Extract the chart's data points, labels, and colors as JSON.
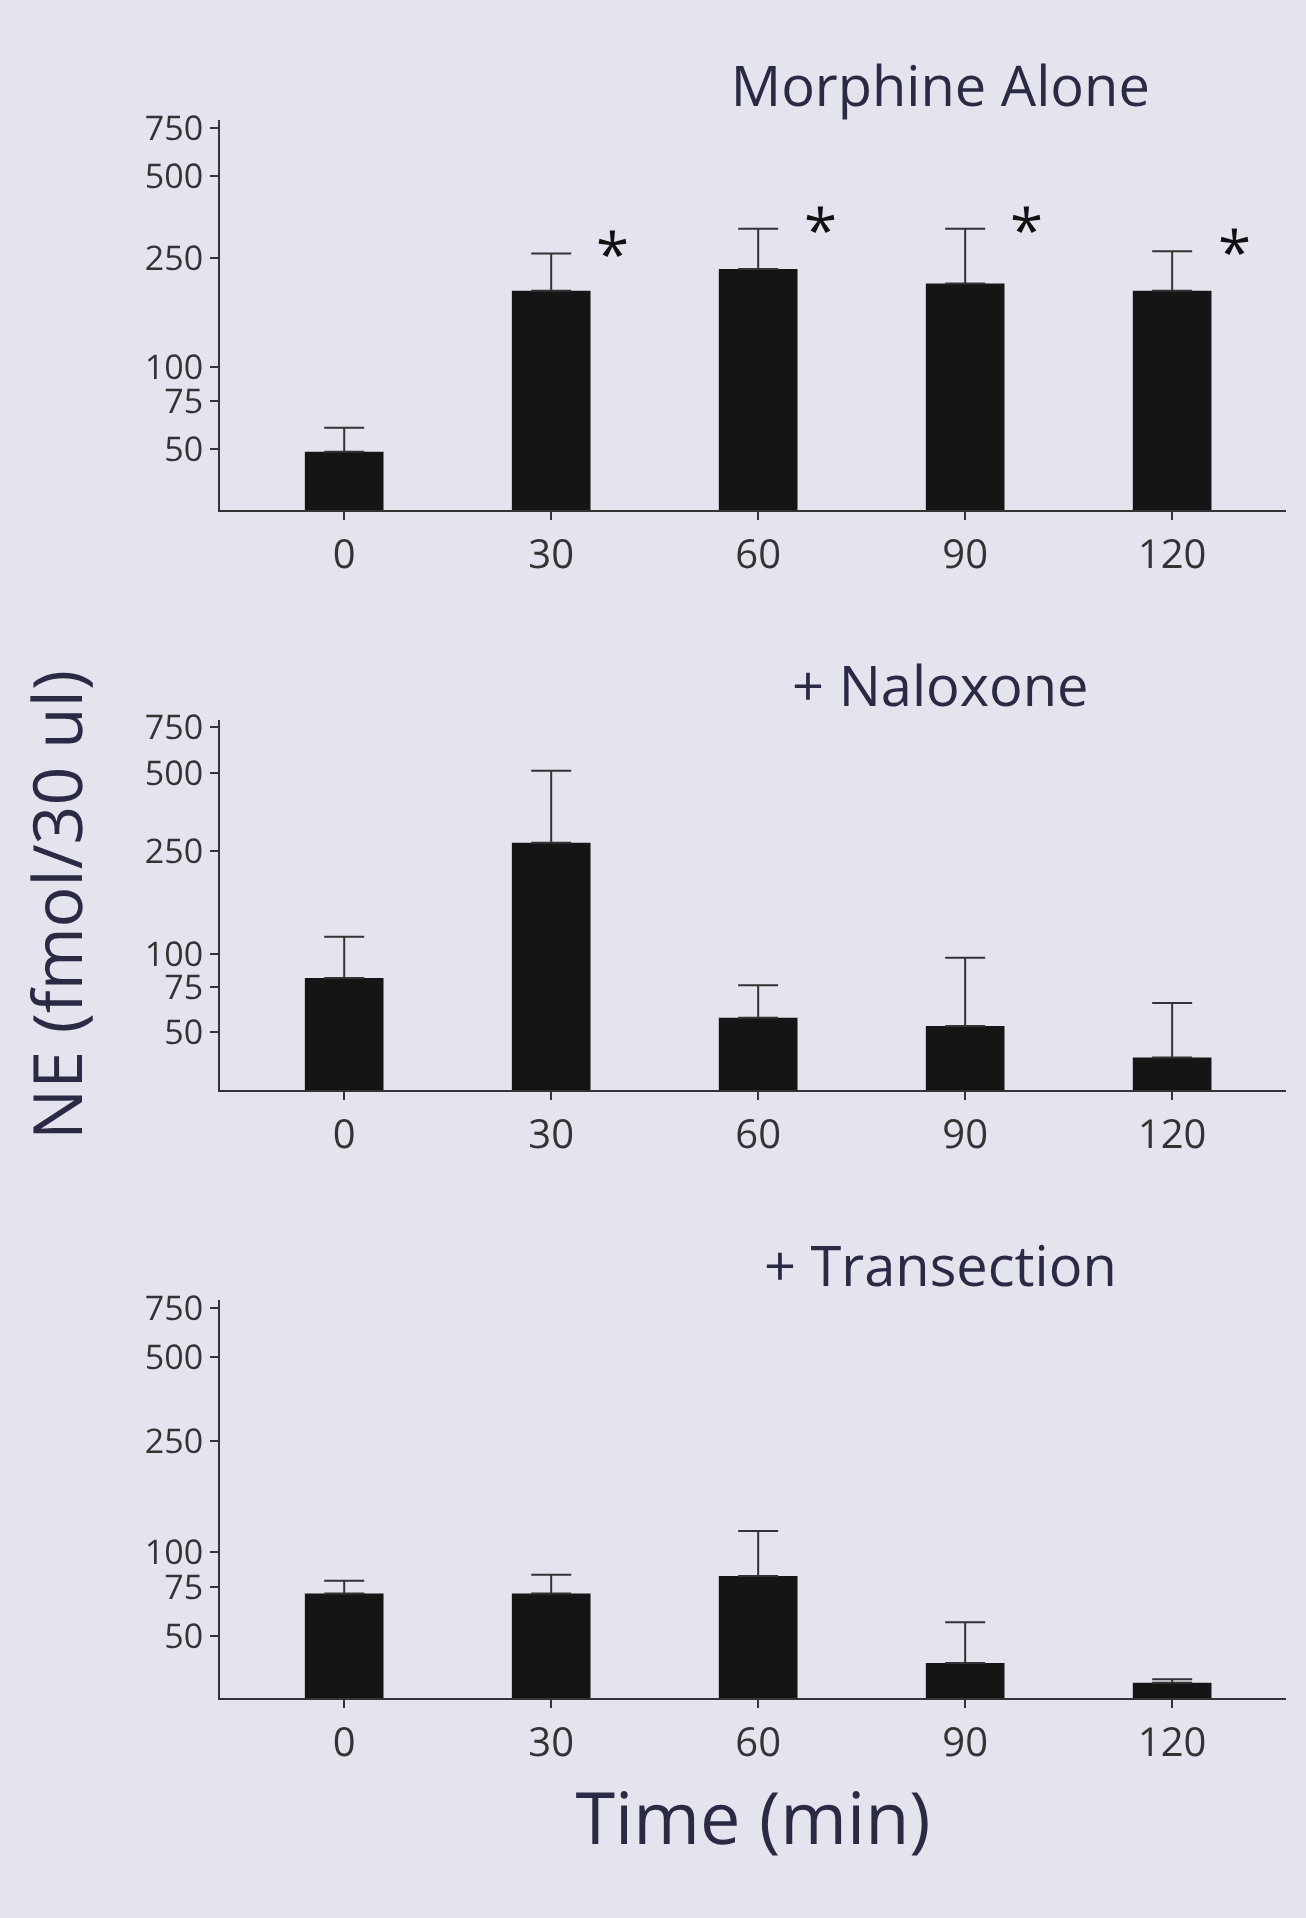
{
  "chart_data": [
    {
      "type": "bar",
      "title": "Morphine Alone",
      "categories": [
        "0",
        "30",
        "60",
        "90",
        "120"
      ],
      "values": [
        49,
        190,
        228,
        202,
        190
      ],
      "errors": [
        [
          49,
          60
        ],
        [
          190,
          260
        ],
        [
          228,
          320
        ],
        [
          202,
          320
        ],
        [
          190,
          265
        ]
      ],
      "color": "#151515",
      "log": true,
      "ylim": [
        30,
        800
      ],
      "yticks": [
        50,
        75,
        100,
        250,
        500,
        750
      ],
      "grid": false,
      "legend": false,
      "annotations": [
        {
          "text": "*",
          "x": "30",
          "y": 260
        },
        {
          "text": "*",
          "x": "60",
          "y": 320
        },
        {
          "text": "*",
          "x": "90",
          "y": 320
        },
        {
          "text": "*",
          "x": "120",
          "y": 265
        }
      ]
    },
    {
      "type": "bar",
      "title": "+ Naloxone",
      "ylabel": "NE (fmol/30 ul)",
      "categories": [
        "0",
        "30",
        "60",
        "90",
        "120"
      ],
      "values": [
        81,
        269,
        57,
        53,
        40
      ],
      "errors": [
        [
          81,
          117
        ],
        [
          269,
          510
        ],
        [
          57,
          76
        ],
        [
          53,
          97
        ],
        [
          40,
          65
        ]
      ],
      "color": "#151515",
      "log": true,
      "ylim": [
        30,
        800
      ],
      "yticks": [
        50,
        75,
        100,
        250,
        500,
        750
      ],
      "grid": false,
      "legend": false
    },
    {
      "type": "bar",
      "title": "+ Transection",
      "xlabel": "Time (min)",
      "categories": [
        "0",
        "30",
        "60",
        "90",
        "120"
      ],
      "values": [
        71,
        71,
        82,
        40,
        34
      ],
      "errors": [
        [
          71,
          79
        ],
        [
          71,
          83
        ],
        [
          82,
          119
        ],
        [
          40,
          56
        ],
        [
          34,
          35
        ]
      ],
      "color": "#151515",
      "log": true,
      "ylim": [
        30,
        800
      ],
      "yticks": [
        50,
        75,
        100,
        250,
        500,
        750
      ],
      "grid": false,
      "legend": false
    }
  ]
}
